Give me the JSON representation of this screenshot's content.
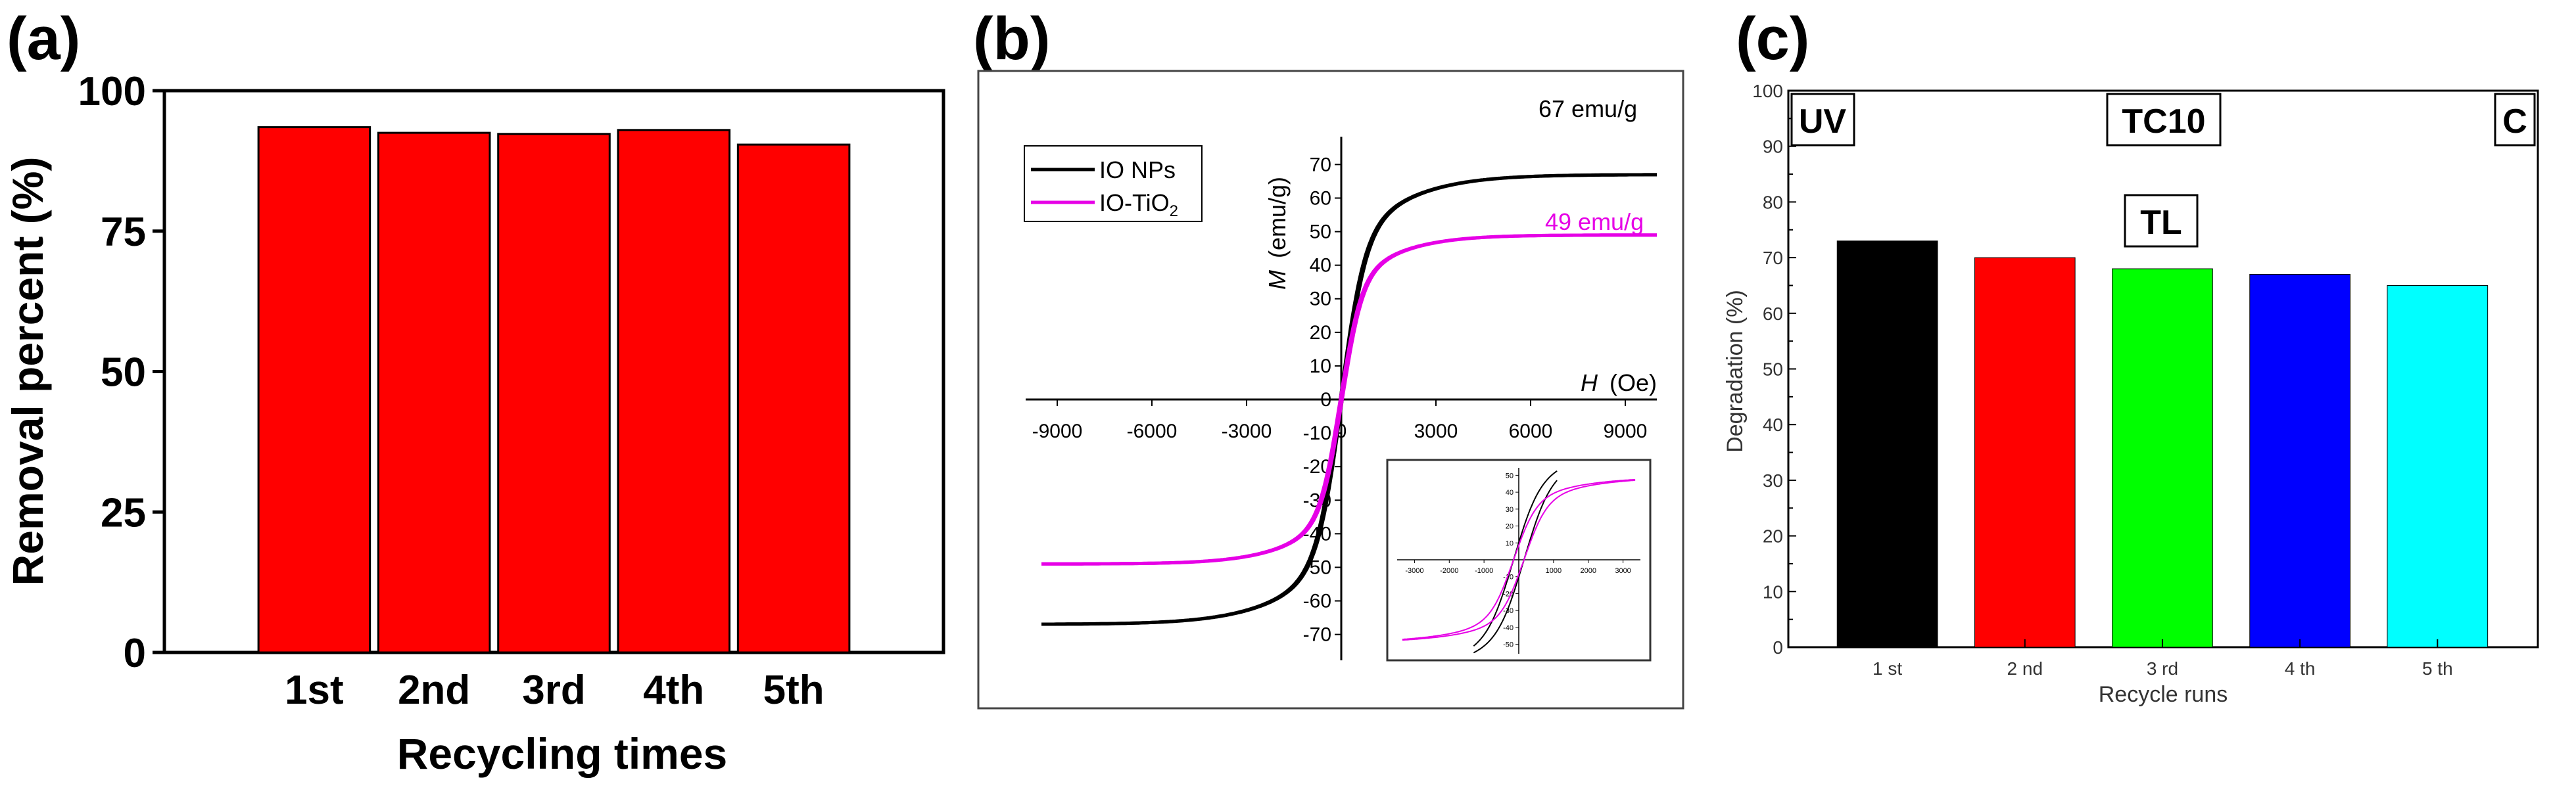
{
  "chart_data": [
    {
      "panel": "(a)",
      "type": "bar",
      "categories": [
        "1st",
        "2nd",
        "3rd",
        "4th",
        "5th"
      ],
      "values": [
        93.5,
        92.5,
        92.3,
        93.0,
        90.4
      ],
      "xlabel": "Recycling times",
      "ylabel": "Removal percent (%)",
      "ylim": [
        0,
        100
      ],
      "yticks": [
        0,
        25,
        50,
        75,
        100
      ],
      "bar_color": "#ff0000"
    },
    {
      "panel": "(b)",
      "type": "line",
      "xlabel_italic": "H",
      "xlabel_unit": "(Oe)",
      "ylabel_italic": "M",
      "ylabel_unit": "(emu/g)",
      "xlim": [
        -10000,
        10000
      ],
      "ylim": [
        -78,
        78
      ],
      "xticks": [
        "-9000",
        "-6000",
        "-3000",
        "0",
        "3000",
        "6000",
        "9000"
      ],
      "yticks": [
        "-70",
        "-60",
        "-50",
        "-40",
        "-30",
        "-20",
        "-10",
        "0",
        "10",
        "20",
        "30",
        "40",
        "50",
        "60",
        "70"
      ],
      "series": [
        {
          "name": "IO NPs",
          "color": "#000000",
          "ms": 67,
          "hc": 300,
          "h0": 720
        },
        {
          "name_main": "IO-TiO",
          "name_sub": "2",
          "color": "#e600e6",
          "ms": 49,
          "hc": 300,
          "h0": 620
        }
      ],
      "annotations": [
        "67 emu/g",
        "49 emu/g"
      ],
      "inset": {
        "xticks": [
          "-3000",
          "-2000",
          "-1000",
          "1000",
          "2000",
          "3000"
        ],
        "yticks": [
          "50",
          "40",
          "30",
          "20",
          "10",
          "-10",
          "-20",
          "-30",
          "-40",
          "-50"
        ],
        "xlim": [
          -3500,
          3500
        ],
        "ylim": [
          -55,
          55
        ]
      }
    },
    {
      "panel": "(c)",
      "type": "bar",
      "categories": [
        "1 st",
        "2 nd",
        "3 rd",
        "4 th",
        "5 th"
      ],
      "values": [
        73,
        70,
        68,
        67,
        65
      ],
      "colors": [
        "#000000",
        "#ff0000",
        "#00ff00",
        "#0000ff",
        "#00ffff"
      ],
      "xlabel": "Recycle runs",
      "ylabel": "Degradation (%)",
      "ylim": [
        0,
        100
      ],
      "yticks": [
        0,
        10,
        20,
        30,
        40,
        50,
        60,
        70,
        80,
        90,
        100
      ],
      "boxes": [
        "UV",
        "TC10",
        "C",
        "TL"
      ]
    }
  ]
}
